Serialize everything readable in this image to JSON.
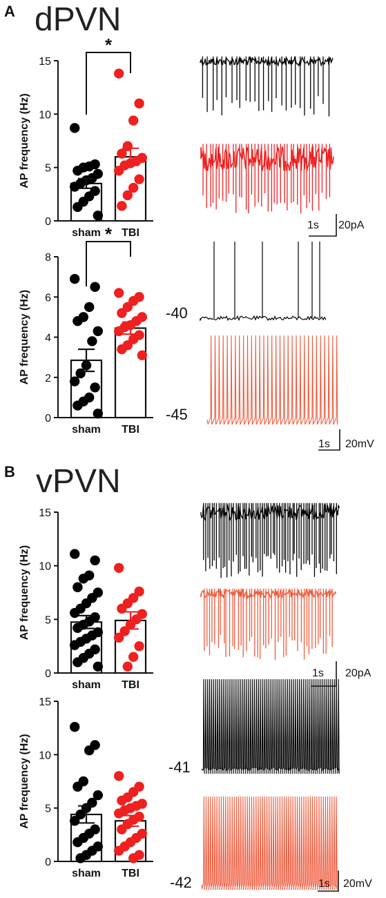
{
  "panels": [
    {
      "letter": "A",
      "region": "dPVN"
    },
    {
      "letter": "B",
      "region": "vPVN"
    }
  ],
  "colors": {
    "sham": "#000000",
    "tbi": "#ee2020",
    "tbi_trace": "#f05a3c"
  },
  "chart_data": [
    {
      "type": "bar",
      "id": "dpvn-voltage-clamp",
      "title": "",
      "ylabel": "AP frequency (Hz)",
      "ylim": [
        0,
        15
      ],
      "yticks": [
        0,
        5,
        10,
        15
      ],
      "categories": [
        "sham",
        "TBI"
      ],
      "values": [
        3.5,
        6.0
      ],
      "sem": [
        0.45,
        0.8
      ],
      "points": [
        [
          8.7,
          5.3,
          5.1,
          5.0,
          4.7,
          4.4,
          4.0,
          3.8,
          3.5,
          3.2,
          2.8,
          2.3,
          1.8,
          1.3,
          0.5
        ],
        [
          13.8,
          11.0,
          9.4,
          7.0,
          6.3,
          5.9,
          5.6,
          5.4,
          5.2,
          4.7,
          3.9,
          3.1,
          2.4,
          1.4
        ]
      ],
      "significance": "*",
      "scalebar": {
        "time": "1s",
        "amplitude": "20pA"
      }
    },
    {
      "type": "bar",
      "id": "dpvn-current-clamp",
      "title": "",
      "ylabel": "AP frequency (Hz)",
      "ylim": [
        0,
        8
      ],
      "yticks": [
        0,
        2,
        4,
        6,
        8
      ],
      "categories": [
        "sham",
        "TBI"
      ],
      "values": [
        2.85,
        4.45
      ],
      "sem": [
        0.55,
        0.3
      ],
      "points": [
        [
          6.9,
          6.5,
          5.5,
          5.0,
          4.8,
          4.3,
          3.8,
          2.6,
          2.2,
          1.8,
          1.5,
          1.0,
          0.8,
          0.6,
          0.2
        ],
        [
          6.2,
          6.0,
          5.8,
          5.5,
          5.2,
          5.0,
          4.8,
          4.6,
          4.5,
          4.3,
          4.1,
          3.9,
          3.6,
          3.4,
          3.1
        ]
      ],
      "significance": "*",
      "trace_labels": [
        "-40",
        "-45"
      ],
      "scalebar": {
        "time": "1s",
        "amplitude": "20mV"
      }
    },
    {
      "type": "bar",
      "id": "vpvn-voltage-clamp",
      "title": "",
      "ylabel": "AP frequency (Hz)",
      "ylim": [
        0,
        15
      ],
      "yticks": [
        0,
        5,
        10,
        15
      ],
      "categories": [
        "sham",
        "TBI"
      ],
      "values": [
        4.75,
        4.9
      ],
      "sem": [
        0.6,
        0.8
      ],
      "points": [
        [
          11.1,
          10.5,
          9.1,
          8.8,
          8.0,
          7.5,
          7.0,
          6.5,
          6.0,
          5.6,
          5.2,
          4.8,
          4.5,
          4.2,
          3.8,
          3.5,
          3.2,
          2.9,
          2.6,
          2.2,
          1.8,
          1.4,
          1.0,
          0.6
        ],
        [
          9.8,
          7.6,
          7.0,
          6.5,
          6.0,
          5.5,
          5.0,
          4.5,
          3.9,
          3.3,
          2.5,
          1.5,
          0.6
        ]
      ],
      "scalebar": {
        "time": "1s",
        "amplitude": "20pA"
      }
    },
    {
      "type": "bar",
      "id": "vpvn-current-clamp",
      "title": "",
      "ylabel": "AP frequency (Hz)",
      "ylim": [
        0,
        15
      ],
      "yticks": [
        0,
        5,
        10,
        15
      ],
      "categories": [
        "sham",
        "TBI"
      ],
      "values": [
        4.4,
        3.8
      ],
      "sem": [
        0.8,
        0.5
      ],
      "points": [
        [
          12.6,
          10.9,
          10.4,
          7.5,
          7.0,
          6.2,
          5.5,
          5.0,
          4.4,
          3.8,
          3.0,
          2.6,
          2.2,
          1.8,
          1.4,
          1.0,
          0.6,
          0.3
        ],
        [
          8.0,
          7.0,
          6.5,
          6.0,
          5.7,
          5.4,
          5.2,
          5.0,
          4.8,
          4.5,
          4.2,
          3.9,
          3.5,
          3.0,
          2.6,
          2.2,
          1.8,
          1.4,
          1.0,
          0.6,
          0.3
        ]
      ],
      "trace_labels": [
        "-41",
        "-42"
      ],
      "scalebar": {
        "time": "1s",
        "amplitude": "20mV"
      }
    }
  ]
}
